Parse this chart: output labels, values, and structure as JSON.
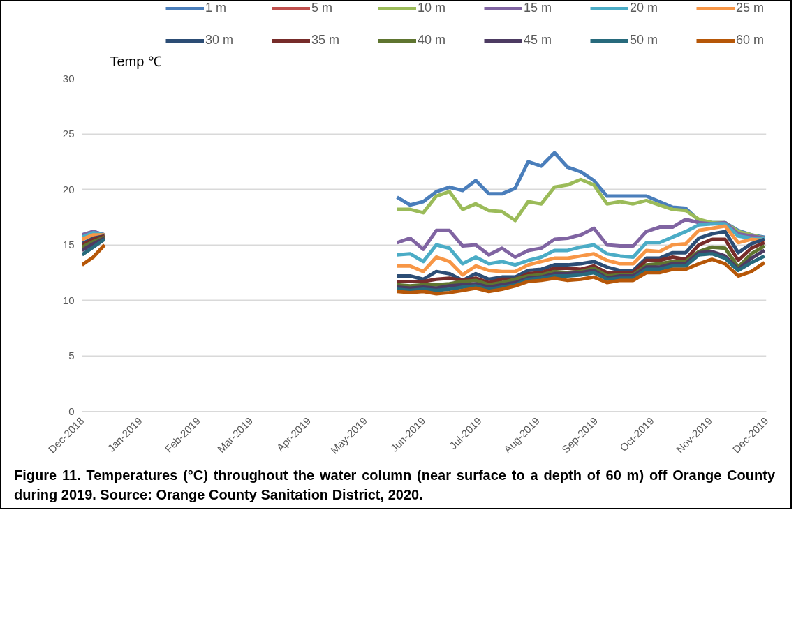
{
  "chart_data": {
    "type": "line",
    "ylabel": "Temp ℃",
    "x": [
      "2018-12-01",
      "2018-12-07",
      "2018-12-13",
      "2019-05-18",
      "2019-05-25",
      "2019-06-01",
      "2019-06-08",
      "2019-06-15",
      "2019-06-22",
      "2019-06-29",
      "2019-07-06",
      "2019-07-13",
      "2019-07-20",
      "2019-07-27",
      "2019-08-03",
      "2019-08-10",
      "2019-08-17",
      "2019-08-24",
      "2019-08-31",
      "2019-09-07",
      "2019-09-14",
      "2019-09-21",
      "2019-09-28",
      "2019-10-05",
      "2019-10-12",
      "2019-10-19",
      "2019-10-26",
      "2019-11-02",
      "2019-11-09",
      "2019-11-16",
      "2019-11-23",
      "2019-11-30"
    ],
    "series": [
      {
        "name": "1 m",
        "color": "#4a7ebb",
        "values": [
          15.9,
          16.2,
          15.9,
          19.3,
          18.6,
          18.9,
          19.8,
          20.2,
          19.9,
          20.8,
          19.6,
          19.6,
          20.1,
          22.5,
          22.1,
          23.3,
          22.0,
          21.6,
          20.8,
          19.4,
          19.4,
          19.4,
          19.4,
          18.9,
          18.4,
          18.3,
          17.2,
          17.0,
          17.0,
          16.3,
          15.9,
          15.7
        ]
      },
      {
        "name": "5 m",
        "color": "#c0504d",
        "values": [
          null,
          null,
          null,
          null,
          null,
          null,
          null,
          null,
          null,
          null,
          null,
          null,
          null,
          null,
          null,
          null,
          null,
          null,
          null,
          null,
          null,
          null,
          null,
          null,
          null,
          null,
          null,
          null,
          null,
          null,
          null,
          null
        ]
      },
      {
        "name": "10 m",
        "color": "#9bbb59",
        "values": [
          15.8,
          16.1,
          15.9,
          18.2,
          18.2,
          17.9,
          19.4,
          19.8,
          18.2,
          18.7,
          18.1,
          18.0,
          17.2,
          18.9,
          18.7,
          20.2,
          20.4,
          20.9,
          20.4,
          18.7,
          18.9,
          18.7,
          19.0,
          18.6,
          18.2,
          18.1,
          17.3,
          17.0,
          17.0,
          16.2,
          15.9,
          15.6
        ]
      },
      {
        "name": "15 m",
        "color": "#8064a2",
        "values": [
          15.9,
          16.2,
          15.9,
          15.2,
          15.6,
          14.6,
          16.3,
          16.3,
          14.9,
          15.0,
          14.1,
          14.7,
          13.9,
          14.5,
          14.7,
          15.5,
          15.6,
          15.9,
          16.5,
          15.0,
          14.9,
          14.9,
          16.2,
          16.6,
          16.6,
          17.3,
          17.0,
          16.9,
          17.0,
          16.0,
          15.8,
          15.6
        ]
      },
      {
        "name": "20 m",
        "color": "#4bacc6",
        "values": [
          15.7,
          16.1,
          15.9,
          14.1,
          14.2,
          13.5,
          15.0,
          14.7,
          13.3,
          13.9,
          13.3,
          13.5,
          13.2,
          13.6,
          13.9,
          14.5,
          14.5,
          14.8,
          15.0,
          14.2,
          14.0,
          13.9,
          15.2,
          15.2,
          15.7,
          16.2,
          16.8,
          16.9,
          16.9,
          15.8,
          15.6,
          15.6
        ]
      },
      {
        "name": "25 m",
        "color": "#f79646",
        "values": [
          15.5,
          15.9,
          15.9,
          13.1,
          13.1,
          12.6,
          13.9,
          13.5,
          12.3,
          13.1,
          12.7,
          12.6,
          12.6,
          13.2,
          13.5,
          13.8,
          13.8,
          14.0,
          14.2,
          13.6,
          13.3,
          13.3,
          14.5,
          14.4,
          15.0,
          15.1,
          16.3,
          16.5,
          16.7,
          15.2,
          15.5,
          15.4
        ]
      },
      {
        "name": "30 m",
        "color": "#2c4d75",
        "values": [
          15.1,
          15.6,
          15.8,
          12.2,
          12.2,
          11.9,
          12.6,
          12.4,
          11.8,
          12.4,
          11.9,
          12.1,
          12.1,
          12.7,
          12.8,
          13.2,
          13.2,
          13.3,
          13.5,
          13.0,
          12.7,
          12.7,
          13.8,
          13.8,
          14.3,
          14.3,
          15.6,
          16.0,
          16.2,
          14.3,
          15.1,
          15.5
        ]
      },
      {
        "name": "35 m",
        "color": "#772c2a",
        "values": [
          15.0,
          15.5,
          15.8,
          11.7,
          11.7,
          11.7,
          11.9,
          12.0,
          11.8,
          12.0,
          11.6,
          11.9,
          11.9,
          12.4,
          12.5,
          12.9,
          12.9,
          12.8,
          13.1,
          12.5,
          12.5,
          12.5,
          13.6,
          13.6,
          13.9,
          13.7,
          15.0,
          15.5,
          15.5,
          13.6,
          14.7,
          15.2
        ]
      },
      {
        "name": "40 m",
        "color": "#5f7530",
        "values": [
          14.8,
          15.3,
          15.7,
          11.4,
          11.3,
          11.4,
          11.4,
          11.5,
          11.7,
          11.8,
          11.4,
          11.6,
          11.9,
          12.2,
          12.3,
          12.6,
          12.5,
          12.6,
          12.9,
          12.2,
          12.3,
          12.3,
          13.2,
          13.3,
          13.5,
          13.5,
          14.4,
          14.8,
          14.7,
          13.0,
          14.2,
          14.9
        ]
      },
      {
        "name": "45 m",
        "color": "#4d3b62",
        "values": [
          14.5,
          15.1,
          15.6,
          11.2,
          11.1,
          11.2,
          11.1,
          11.3,
          11.4,
          11.5,
          11.2,
          11.4,
          11.6,
          12.0,
          12.1,
          12.4,
          12.4,
          12.5,
          12.7,
          12.0,
          12.2,
          12.2,
          13.0,
          13.0,
          13.3,
          13.3,
          14.3,
          14.4,
          14.0,
          12.8,
          13.8,
          14.5
        ]
      },
      {
        "name": "50 m",
        "color": "#276a7c",
        "values": [
          14.1,
          14.8,
          15.5,
          11.0,
          10.9,
          11.0,
          10.9,
          11.0,
          11.2,
          11.3,
          11.0,
          11.2,
          11.4,
          11.9,
          12.0,
          12.2,
          12.2,
          12.3,
          12.5,
          11.9,
          12.0,
          12.0,
          12.8,
          12.8,
          13.1,
          13.1,
          14.1,
          14.2,
          13.8,
          12.7,
          13.4,
          14.0
        ]
      },
      {
        "name": "60 m",
        "color": "#b65708",
        "values": [
          13.2,
          13.9,
          15.0,
          10.8,
          10.7,
          10.8,
          10.6,
          10.7,
          10.9,
          11.1,
          10.8,
          11.0,
          11.3,
          11.7,
          11.8,
          12.0,
          11.8,
          11.9,
          12.1,
          11.6,
          11.8,
          11.8,
          12.5,
          12.5,
          12.8,
          12.8,
          13.3,
          13.7,
          13.3,
          12.2,
          12.6,
          13.4
        ]
      }
    ],
    "xlim": [
      "2018-12-01",
      "2019-12-01"
    ],
    "xticks": [
      {
        "value": "2018-12-01",
        "label": "Dec-2018"
      },
      {
        "value": "2019-01-01",
        "label": "Jan-2019"
      },
      {
        "value": "2019-02-01",
        "label": "Feb-2019"
      },
      {
        "value": "2019-03-01",
        "label": "Mar-2019"
      },
      {
        "value": "2019-04-01",
        "label": "Apr-2019"
      },
      {
        "value": "2019-05-01",
        "label": "May-2019"
      },
      {
        "value": "2019-06-01",
        "label": "Jun-2019"
      },
      {
        "value": "2019-07-01",
        "label": "Jul-2019"
      },
      {
        "value": "2019-08-01",
        "label": "Aug-2019"
      },
      {
        "value": "2019-09-01",
        "label": "Sep-2019"
      },
      {
        "value": "2019-10-01",
        "label": "Oct-2019"
      },
      {
        "value": "2019-11-01",
        "label": "Nov-2019"
      },
      {
        "value": "2019-12-01",
        "label": "Dec-2019"
      }
    ],
    "ylim": [
      0,
      30
    ],
    "yticks": [
      0,
      5,
      10,
      15,
      20,
      25,
      30
    ],
    "grid": "y",
    "legend": "top",
    "marker": "none",
    "line_style": "solid",
    "annotations": [
      "Figure 11. Temperatures (°C) throughout the water column (near surface to a depth of 60 m) off Orange County during 2019. Source: Orange County Sanitation District, 2020."
    ]
  }
}
